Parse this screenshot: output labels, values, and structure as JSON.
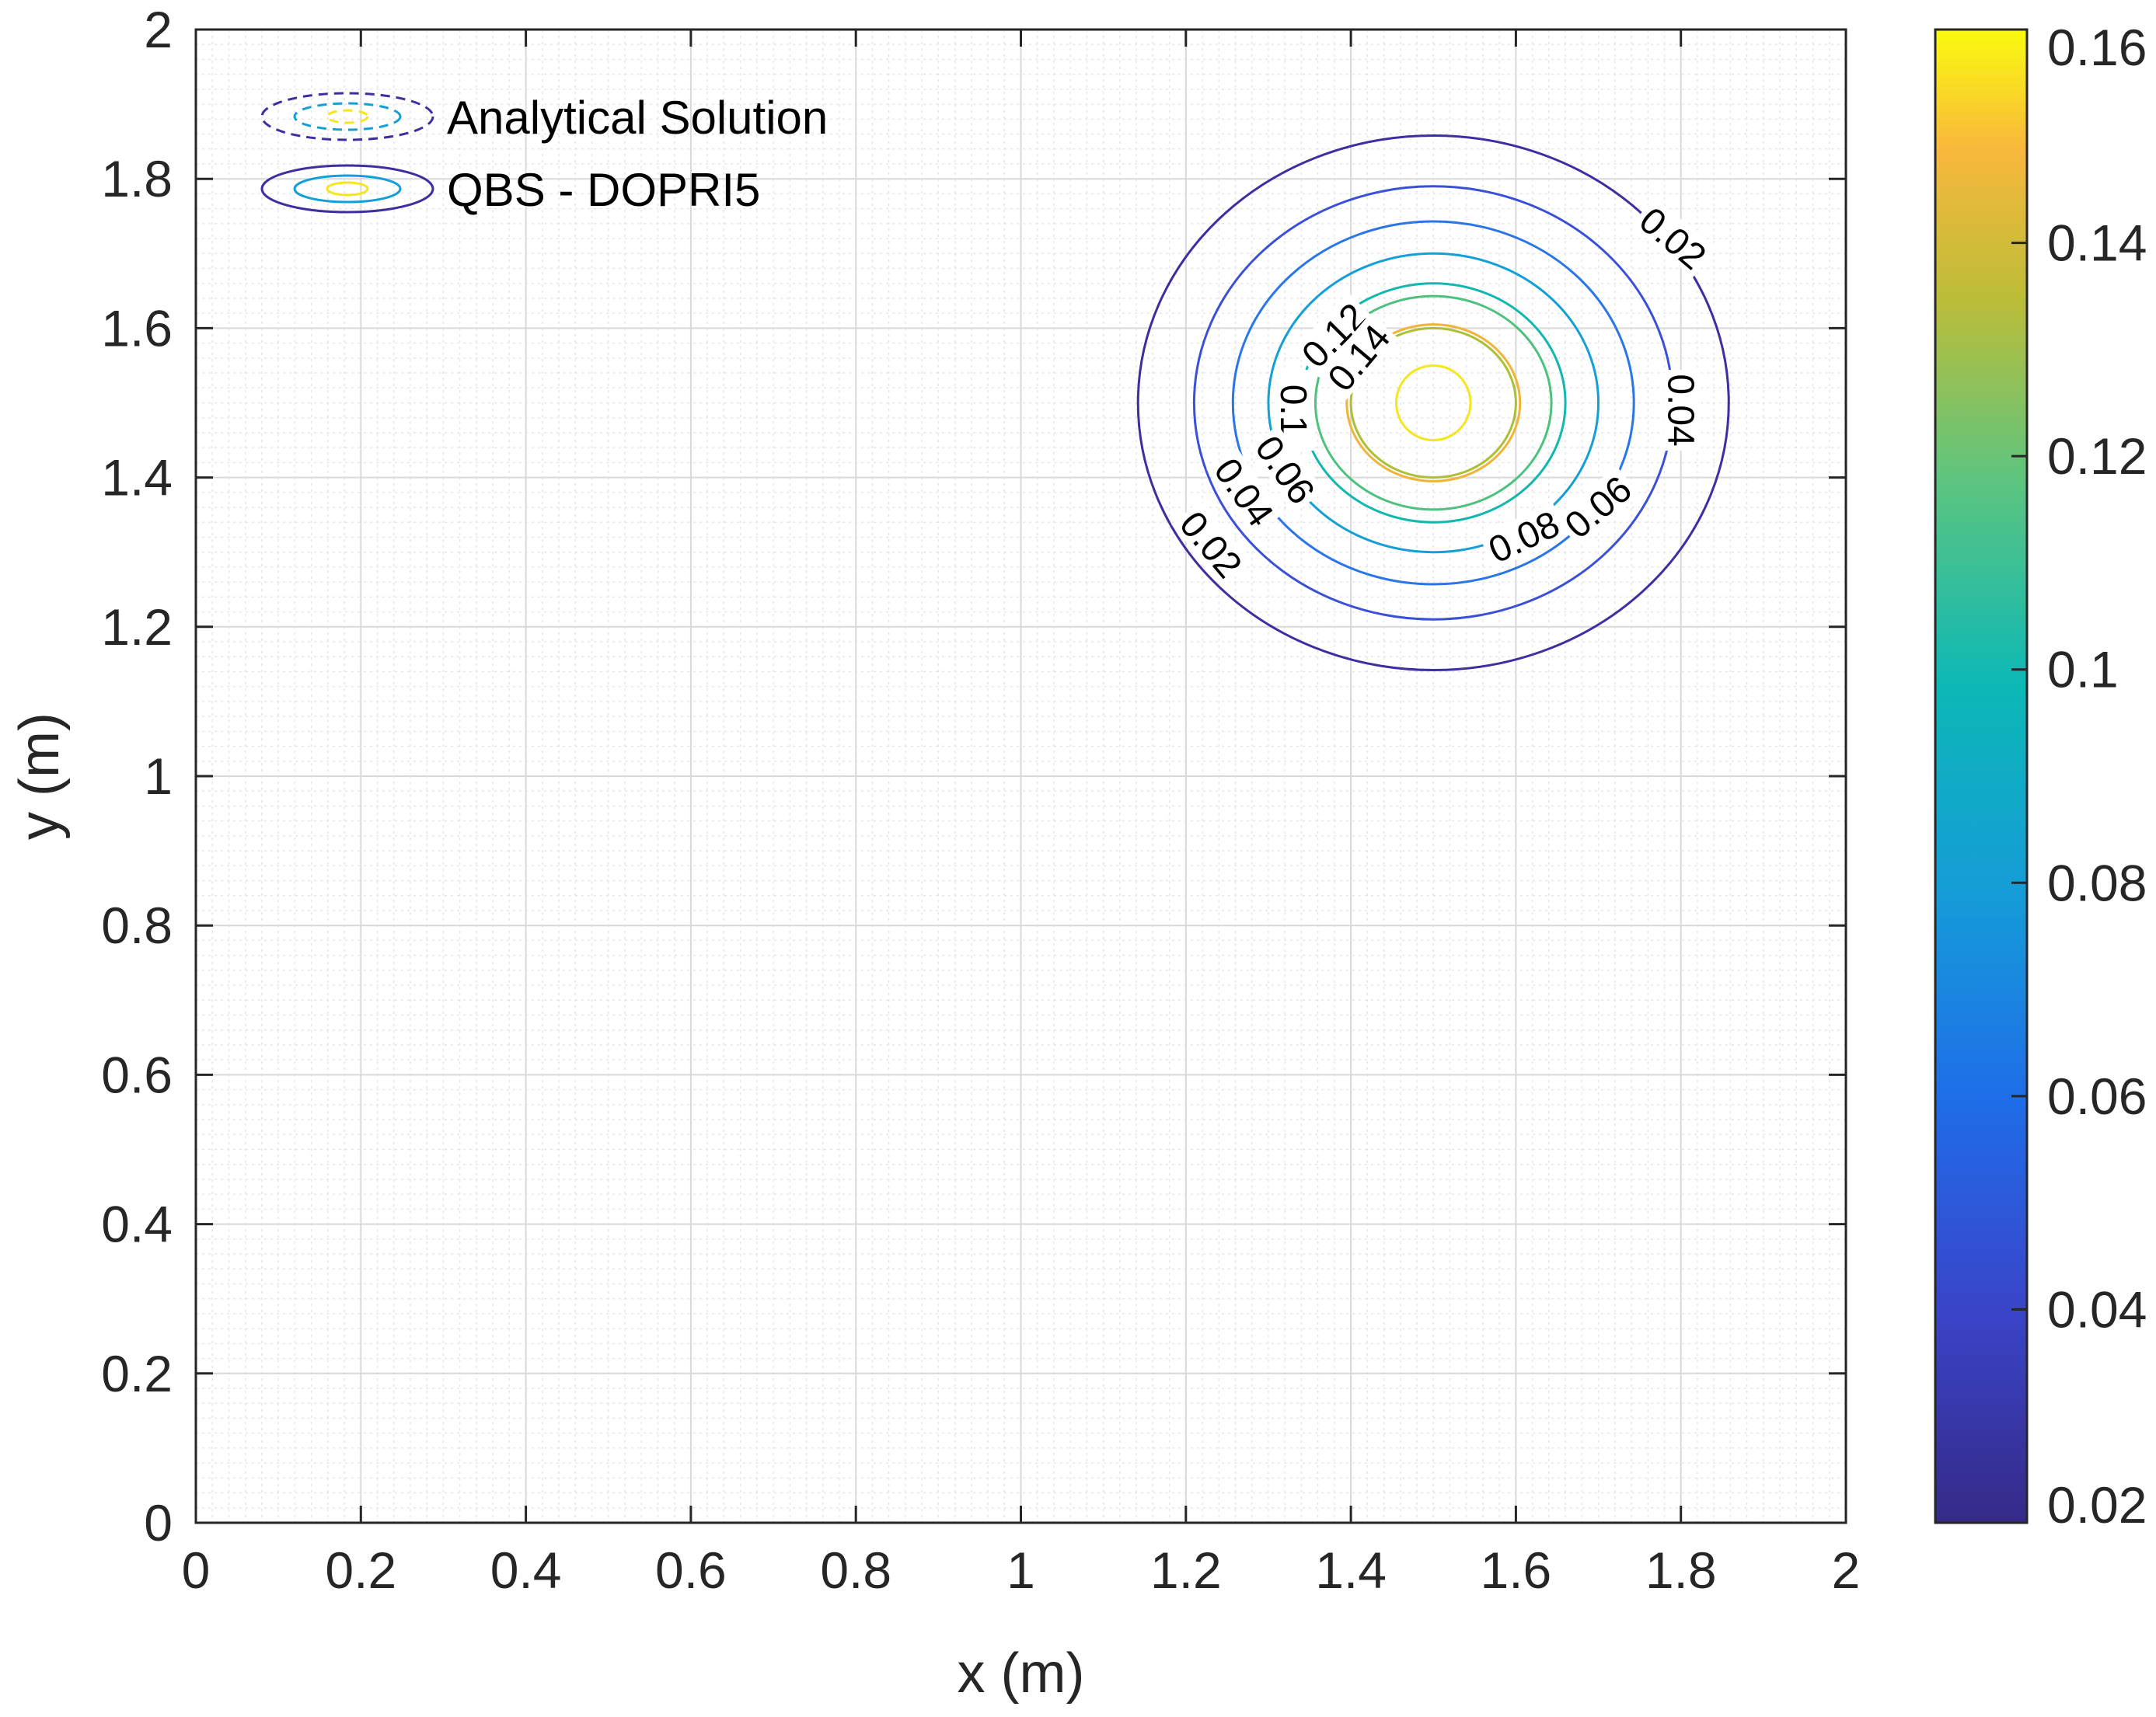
{
  "chart_data": {
    "type": "contour",
    "xlabel": "x (m)",
    "ylabel": "y (m)",
    "xlim": [
      0,
      2
    ],
    "ylim": [
      0,
      2
    ],
    "x_ticks": [
      "0",
      "0.2",
      "0.4",
      "0.6",
      "0.8",
      "1",
      "1.2",
      "1.4",
      "1.6",
      "1.8",
      "2"
    ],
    "y_ticks": [
      "0",
      "0.2",
      "0.4",
      "0.6",
      "0.8",
      "1",
      "1.2",
      "1.4",
      "1.6",
      "1.8",
      "2"
    ],
    "grid": true,
    "minor_grid": true,
    "colormap": "parula",
    "colorbar": {
      "range": [
        0.02,
        0.16
      ],
      "ticks": [
        "0.02",
        "0.04",
        "0.06",
        "0.08",
        "0.1",
        "0.12",
        "0.14",
        "0.16"
      ]
    },
    "center": [
      1.5,
      1.5
    ],
    "levels": [
      {
        "value": 0.02,
        "rx": 0.358,
        "ry": 0.358,
        "color": "#3d2fa0"
      },
      {
        "value": 0.04,
        "rx": 0.29,
        "ry": 0.29,
        "color": "#3a50d8"
      },
      {
        "value": 0.06,
        "rx": 0.243,
        "ry": 0.243,
        "color": "#2a76e8"
      },
      {
        "value": 0.08,
        "rx": 0.2,
        "ry": 0.2,
        "color": "#14a0d6"
      },
      {
        "value": 0.1,
        "rx": 0.16,
        "ry": 0.16,
        "color": "#12b8b0"
      },
      {
        "value": 0.12,
        "rx": 0.143,
        "ry": 0.143,
        "color": "#4dc17d"
      },
      {
        "value": 0.14,
        "rx": 0.1,
        "ry": 0.1,
        "color": "#aebf36"
      },
      {
        "value": 0.15,
        "rx": 0.105,
        "ry": 0.105,
        "color": "#f0b43a"
      },
      {
        "value": 0.16,
        "rx": 0.045,
        "ry": 0.05,
        "color": "#f4e620"
      }
    ],
    "contour_labels": [
      {
        "text": "0.02",
        "x": 1.79,
        "y": 1.72,
        "angle": 40
      },
      {
        "text": "0.04",
        "x": 1.8,
        "y": 1.49,
        "angle": 90
      },
      {
        "text": "0.06",
        "x": 1.7,
        "y": 1.36,
        "angle": -40
      },
      {
        "text": "0.08",
        "x": 1.61,
        "y": 1.32,
        "angle": -25
      },
      {
        "text": "0.1",
        "x": 1.33,
        "y": 1.49,
        "angle": 90
      },
      {
        "text": "0.12",
        "x": 1.38,
        "y": 1.59,
        "angle": -45
      },
      {
        "text": "0.14",
        "x": 1.41,
        "y": 1.56,
        "angle": -50
      },
      {
        "text": "0.06",
        "x": 1.32,
        "y": 1.41,
        "angle": 55
      },
      {
        "text": "0.04",
        "x": 1.27,
        "y": 1.38,
        "angle": 55
      },
      {
        "text": "0.02",
        "x": 1.23,
        "y": 1.31,
        "angle": 50
      }
    ],
    "legend": {
      "placement": "top-left",
      "entries": [
        {
          "label": "Analytical Solution",
          "style": "dashed"
        },
        {
          "label": "QBS - DOPRI5",
          "style": "solid"
        }
      ]
    }
  }
}
